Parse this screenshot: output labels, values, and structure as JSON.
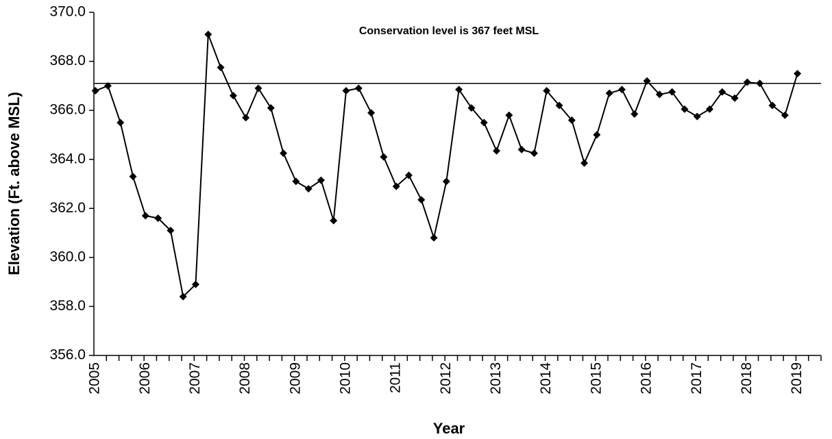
{
  "chart_data": {
    "type": "line",
    "y_label": "Elevation (Ft. above MSL)",
    "x_label": "Year",
    "annotation": "Conservation level is 367 feet MSL",
    "reference_line": 367.1,
    "categories": [
      "2005",
      null,
      null,
      null,
      "2006",
      null,
      null,
      null,
      "2007",
      null,
      null,
      null,
      "2008",
      null,
      null,
      null,
      "2009",
      null,
      null,
      null,
      "2010",
      null,
      null,
      null,
      "2011",
      null,
      null,
      null,
      "2012",
      null,
      null,
      null,
      "2013",
      null,
      null,
      null,
      "2014",
      null,
      null,
      null,
      "2015",
      null,
      null,
      null,
      "2016",
      null,
      null,
      null,
      "2017",
      null,
      null,
      null,
      "2018",
      null,
      null,
      null,
      "2019",
      null
    ],
    "series": [
      {
        "name": "Elevation",
        "color": "#000000",
        "values": [
          366.8,
          367.0,
          365.5,
          363.3,
          361.7,
          361.6,
          361.1,
          358.4,
          358.9,
          369.1,
          367.75,
          366.6,
          365.7,
          366.9,
          366.1,
          364.25,
          363.1,
          362.8,
          363.15,
          361.5,
          366.8,
          366.9,
          365.9,
          364.1,
          362.9,
          363.35,
          362.35,
          360.8,
          363.1,
          366.85,
          366.1,
          365.5,
          364.35,
          365.8,
          364.4,
          364.25,
          366.8,
          366.2,
          365.6,
          363.85,
          365.0,
          366.7,
          366.85,
          365.85,
          367.2,
          366.65,
          366.75,
          366.05,
          365.75,
          366.05,
          366.75,
          366.5,
          367.15,
          367.1,
          366.2,
          365.8,
          367.5,
          null
        ]
      }
    ],
    "ylim": [
      356,
      370
    ],
    "yticks": [
      {
        "value": 356,
        "label": "356.0"
      },
      {
        "value": 358,
        "label": "358.0"
      },
      {
        "value": 360,
        "label": "360.0"
      },
      {
        "value": 362,
        "label": "362.0"
      },
      {
        "value": 364,
        "label": "364.0"
      },
      {
        "value": 366,
        "label": "366.0"
      },
      {
        "value": 368,
        "label": "368.0"
      },
      {
        "value": 370,
        "label": "370.0"
      }
    ],
    "grid": false
  }
}
